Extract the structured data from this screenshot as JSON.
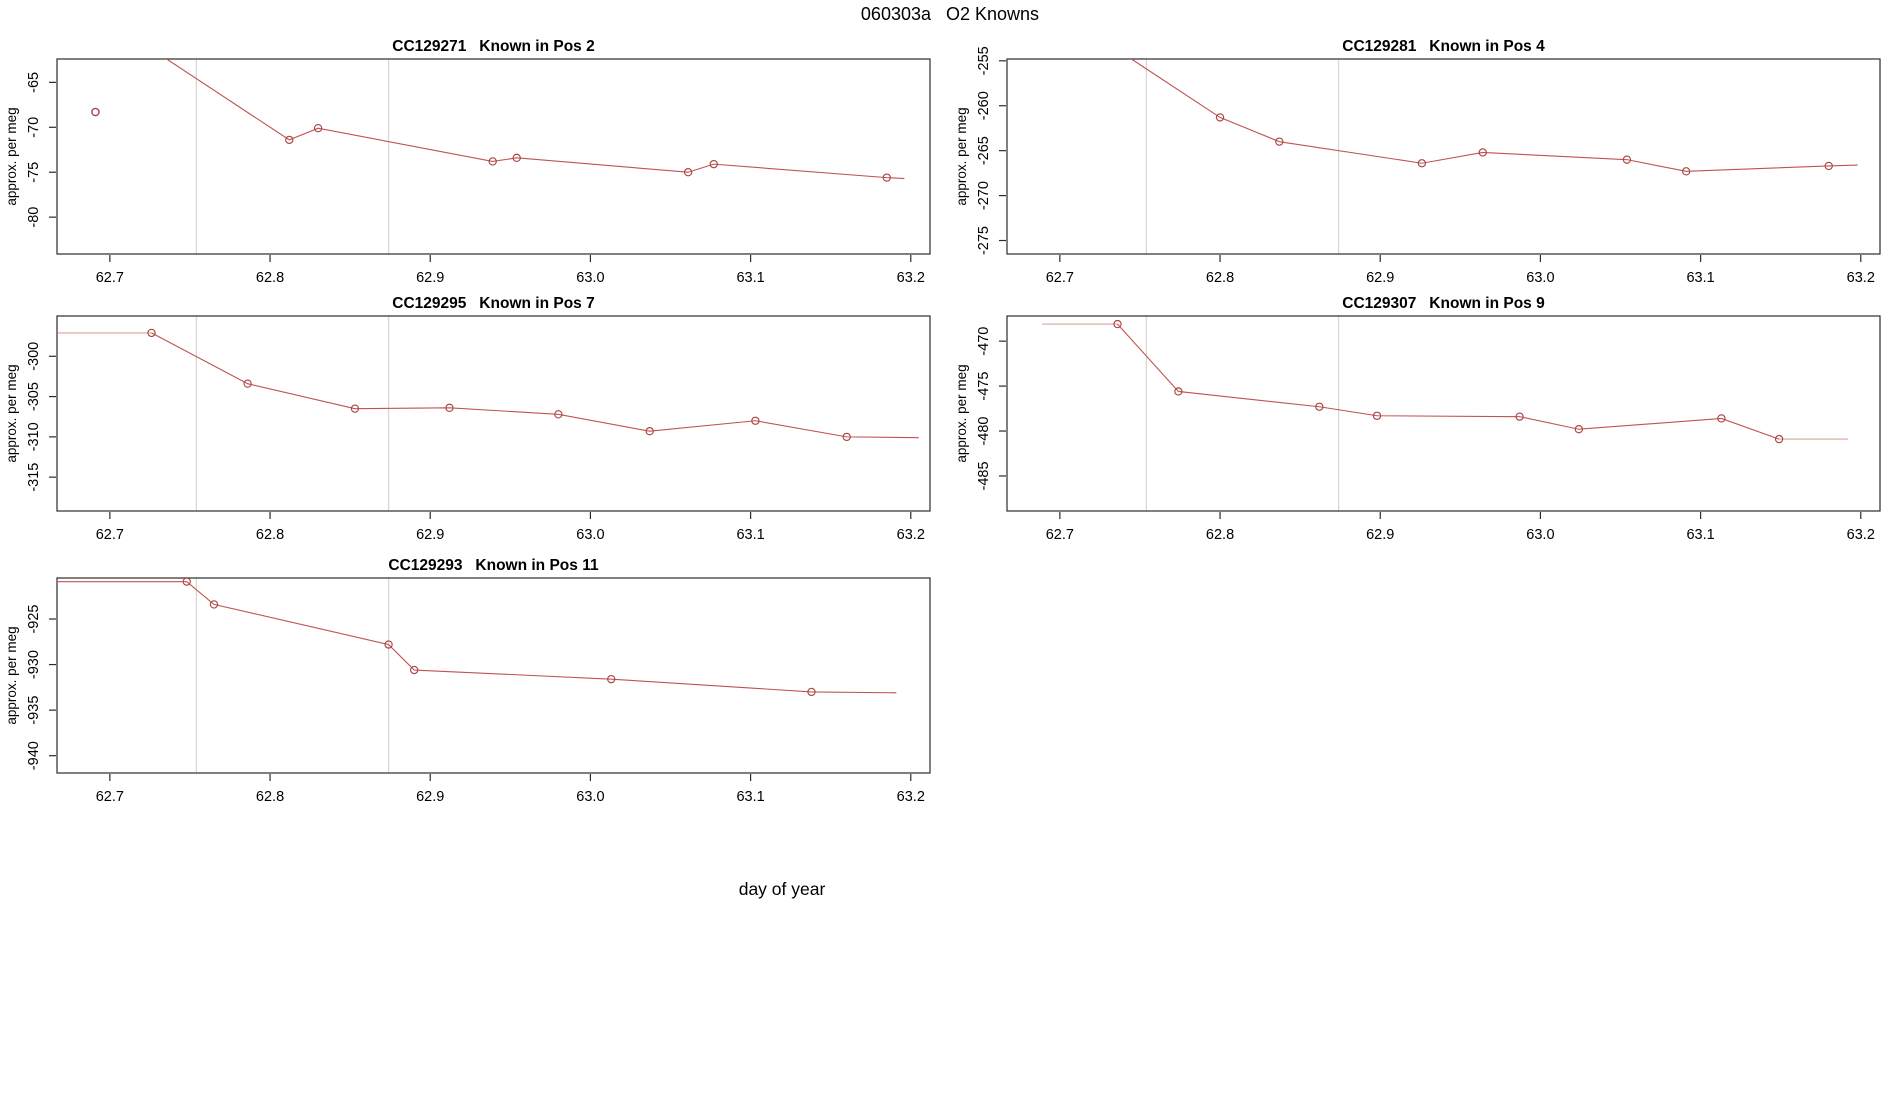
{
  "header": {
    "title": "060303a   O2 Knowns"
  },
  "footer": {
    "xlabel": "day of year"
  },
  "colors": {
    "line": "#bf5350",
    "marker": "#a84744",
    "grid": "#d8d8d8",
    "axis": "#2b2b2b",
    "text": "#000000",
    "light_opacity": 0.55
  },
  "axis": {
    "x_domain": [
      62.667,
      63.212
    ],
    "x_ticks": [
      62.7,
      62.8,
      62.9,
      63.0,
      63.1,
      63.2
    ],
    "gridlines": [
      62.754,
      62.874
    ]
  },
  "chart_data": [
    {
      "type": "line",
      "title_id": "CC129271",
      "title_label": "Known in Pos 2",
      "ylabel": "approx. per meg",
      "ylim": [
        -84.1,
        -62.4
      ],
      "yticks": [
        -80,
        -75,
        -70,
        -65
      ],
      "line": [
        [
          62.715,
          -60.0
        ],
        [
          62.812,
          -71.4
        ],
        [
          62.83,
          -70.1
        ],
        [
          62.939,
          -73.8
        ],
        [
          62.954,
          -73.4
        ],
        [
          63.061,
          -75.0
        ],
        [
          63.077,
          -74.1
        ],
        [
          63.185,
          -75.6
        ],
        [
          63.196,
          -75.7
        ]
      ],
      "markers": [
        [
          62.812,
          -71.4
        ],
        [
          62.83,
          -70.1
        ],
        [
          62.939,
          -73.8
        ],
        [
          62.954,
          -73.4
        ],
        [
          63.061,
          -75.0
        ],
        [
          63.077,
          -74.1
        ],
        [
          63.185,
          -75.6
        ]
      ],
      "isolated": [
        [
          62.691,
          -68.3
        ]
      ],
      "lead_light": false,
      "tail_light": false
    },
    {
      "type": "line",
      "title_id": "CC129281",
      "title_label": "Known in Pos 4",
      "ylabel": "approx. per meg",
      "ylim": [
        -276.5,
        -254.8
      ],
      "yticks": [
        -275,
        -270,
        -265,
        -260,
        -255
      ],
      "line": [
        [
          62.708,
          -250.5
        ],
        [
          62.8,
          -261.3
        ],
        [
          62.837,
          -264.0
        ],
        [
          62.926,
          -266.4
        ],
        [
          62.964,
          -265.2
        ],
        [
          63.054,
          -266.0
        ],
        [
          63.091,
          -267.3
        ],
        [
          63.18,
          -266.7
        ],
        [
          63.198,
          -266.6
        ]
      ],
      "markers": [
        [
          62.8,
          -261.3
        ],
        [
          62.837,
          -264.0
        ],
        [
          62.926,
          -266.4
        ],
        [
          62.964,
          -265.2
        ],
        [
          63.054,
          -266.0
        ],
        [
          63.091,
          -267.3
        ],
        [
          63.18,
          -266.7
        ]
      ],
      "isolated": [],
      "lead_light": false,
      "tail_light": false
    },
    {
      "type": "line",
      "title_id": "CC129295",
      "title_label": "Known in Pos 7",
      "ylabel": "approx. per meg",
      "ylim": [
        -319.2,
        -295.0
      ],
      "yticks": [
        -315,
        -310,
        -305,
        -300
      ],
      "line": [
        [
          62.655,
          -297.1
        ],
        [
          62.726,
          -297.1
        ],
        [
          62.786,
          -303.4
        ],
        [
          62.853,
          -306.5
        ],
        [
          62.912,
          -306.4
        ],
        [
          62.98,
          -307.2
        ],
        [
          63.037,
          -309.3
        ],
        [
          63.103,
          -308.0
        ],
        [
          63.16,
          -310.0
        ],
        [
          63.205,
          -310.1
        ]
      ],
      "markers": [
        [
          62.726,
          -297.1
        ],
        [
          62.786,
          -303.4
        ],
        [
          62.853,
          -306.5
        ],
        [
          62.912,
          -306.4
        ],
        [
          62.98,
          -307.2
        ],
        [
          63.037,
          -309.3
        ],
        [
          63.103,
          -308.0
        ],
        [
          63.16,
          -310.0
        ]
      ],
      "isolated": [],
      "lead_light": true,
      "tail_light": false
    },
    {
      "type": "line",
      "title_id": "CC129307",
      "title_label": "Known in Pos 9",
      "ylabel": "approx. per meg",
      "ylim": [
        -488.9,
        -467.2
      ],
      "yticks": [
        -485,
        -480,
        -475,
        -470
      ],
      "line": [
        [
          62.689,
          -468.1
        ],
        [
          62.736,
          -468.1
        ],
        [
          62.774,
          -475.6
        ],
        [
          62.862,
          -477.3
        ],
        [
          62.898,
          -478.3
        ],
        [
          62.987,
          -478.4
        ],
        [
          63.024,
          -479.8
        ],
        [
          63.113,
          -478.6
        ],
        [
          63.149,
          -480.9
        ],
        [
          63.192,
          -480.9
        ]
      ],
      "markers": [
        [
          62.736,
          -468.1
        ],
        [
          62.774,
          -475.6
        ],
        [
          62.862,
          -477.3
        ],
        [
          62.898,
          -478.3
        ],
        [
          62.987,
          -478.4
        ],
        [
          63.024,
          -479.8
        ],
        [
          63.113,
          -478.6
        ],
        [
          63.149,
          -480.9
        ]
      ],
      "isolated": [],
      "lead_light": true,
      "tail_light": true
    },
    {
      "type": "line",
      "title_id": "CC129293",
      "title_label": "Known in Pos 11",
      "ylabel": "approx. per meg",
      "ylim": [
        -941.9,
        -920.5
      ],
      "yticks": [
        -940,
        -935,
        -930,
        -925
      ],
      "line": [
        [
          62.655,
          -920.9
        ],
        [
          62.748,
          -920.9
        ],
        [
          62.765,
          -923.4
        ],
        [
          62.874,
          -927.8
        ],
        [
          62.89,
          -930.6
        ],
        [
          63.013,
          -931.6
        ],
        [
          63.138,
          -933.0
        ],
        [
          63.191,
          -933.1
        ]
      ],
      "markers": [
        [
          62.748,
          -920.9
        ],
        [
          62.765,
          -923.4
        ],
        [
          62.874,
          -927.8
        ],
        [
          62.89,
          -930.6
        ],
        [
          63.013,
          -931.6
        ],
        [
          63.138,
          -933.0
        ]
      ],
      "isolated": [],
      "lead_light": false,
      "tail_light": false
    }
  ]
}
